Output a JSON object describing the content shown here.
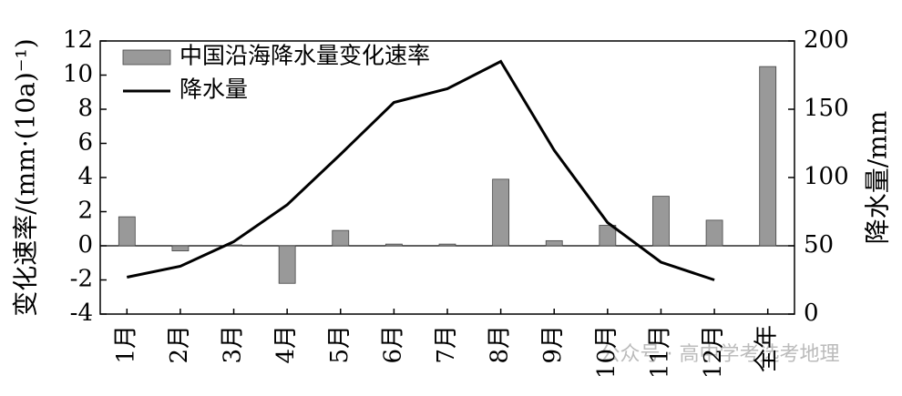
{
  "chart_data": {
    "type": "combo",
    "categories": [
      "1月",
      "2月",
      "3月",
      "4月",
      "5月",
      "6月",
      "7月",
      "8月",
      "9月",
      "10月",
      "11月",
      "12月",
      "全年"
    ],
    "series": [
      {
        "name": "中国沿海降水量变化速率",
        "type": "bar",
        "color": "#999999",
        "values": [
          1.7,
          -0.3,
          0.05,
          -2.2,
          0.9,
          0.1,
          0.1,
          3.9,
          0.3,
          1.2,
          2.9,
          1.5,
          10.5
        ]
      },
      {
        "name": "降水量",
        "type": "line",
        "axis": "y2",
        "color": "#000000",
        "values": [
          27,
          35,
          53,
          80,
          117,
          155,
          165,
          185,
          120,
          67,
          38,
          25,
          null
        ]
      }
    ],
    "ylabel": "变化速率/(mm·(10a)⁻¹)",
    "y2label": "降水量/mm",
    "ylim": [
      -4,
      12
    ],
    "yticks": [
      -4,
      -2,
      0,
      2,
      4,
      6,
      8,
      10,
      12
    ],
    "y2lim": [
      0,
      200
    ],
    "y2ticks": [
      0,
      50,
      100,
      150,
      200
    ],
    "legend": "upper-left",
    "watermark": "公众号 · 高中学考选考地理"
  }
}
